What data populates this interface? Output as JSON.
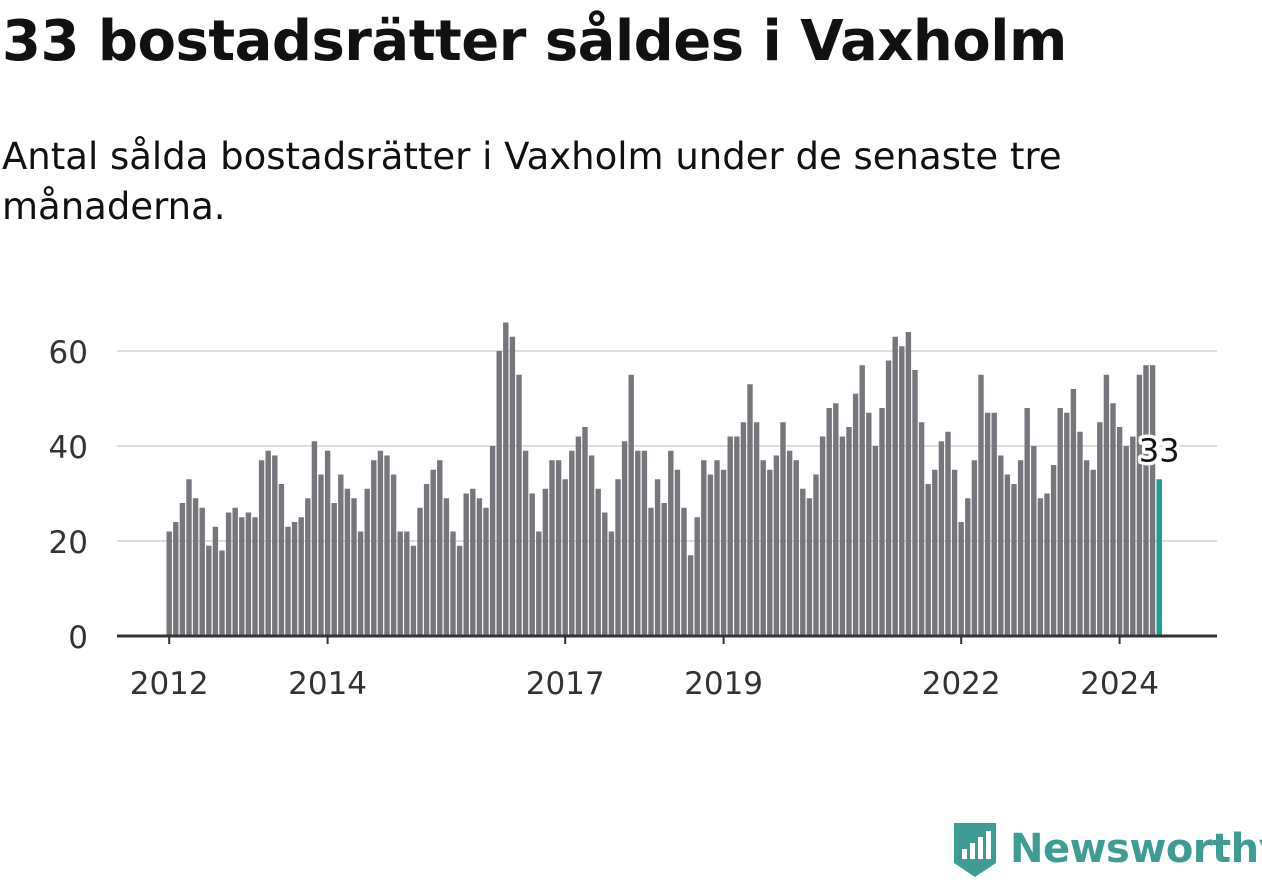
{
  "title": "33 bostadsrätter såldes i Vaxholm",
  "subtitle": "Antal sålda bostadsrätter i Vaxholm under de senaste tre månaderna.",
  "brand": {
    "name": "Newsworthy",
    "icon": "newsworthy-logo-icon"
  },
  "colors": {
    "bar": "#76767c",
    "highlight": "#1a9e93",
    "grid": "#dddddd",
    "axis": "#333333",
    "brand": "#3d9d94"
  },
  "chart_data": {
    "type": "bar",
    "title": "Antal sålda bostadsrätter i Vaxholm under de senaste tre månaderna.",
    "xlabel": "",
    "ylabel": "",
    "ylim": [
      0,
      70
    ],
    "yticks": [
      0,
      20,
      40,
      60
    ],
    "x_ticks": [
      {
        "label": "2012",
        "index": 0
      },
      {
        "label": "2014",
        "index": 24
      },
      {
        "label": "2017",
        "index": 60
      },
      {
        "label": "2019",
        "index": 84
      },
      {
        "label": "2022",
        "index": 120
      },
      {
        "label": "2024",
        "index": 144
      }
    ],
    "highlight_label": "33",
    "values": [
      22,
      24,
      28,
      33,
      29,
      27,
      19,
      23,
      18,
      26,
      27,
      25,
      26,
      25,
      37,
      39,
      38,
      32,
      23,
      24,
      25,
      29,
      41,
      34,
      39,
      28,
      34,
      31,
      29,
      22,
      31,
      37,
      39,
      38,
      34,
      22,
      22,
      19,
      27,
      32,
      35,
      37,
      29,
      22,
      19,
      30,
      31,
      29,
      27,
      40,
      60,
      66,
      63,
      55,
      39,
      30,
      22,
      31,
      37,
      37,
      33,
      39,
      42,
      44,
      38,
      31,
      26,
      22,
      33,
      41,
      55,
      39,
      39,
      27,
      33,
      28,
      39,
      35,
      27,
      17,
      25,
      37,
      34,
      37,
      35,
      42,
      42,
      45,
      53,
      45,
      37,
      35,
      38,
      45,
      39,
      37,
      31,
      29,
      34,
      42,
      48,
      49,
      42,
      44,
      51,
      57,
      47,
      40,
      48,
      58,
      63,
      61,
      64,
      56,
      45,
      32,
      35,
      41,
      43,
      35,
      24,
      29,
      37,
      55,
      47,
      47,
      38,
      34,
      32,
      37,
      48,
      40,
      29,
      30,
      36,
      48,
      47,
      52,
      43,
      37,
      35,
      45,
      55,
      49,
      44,
      40,
      42,
      55,
      57,
      57,
      33
    ]
  }
}
